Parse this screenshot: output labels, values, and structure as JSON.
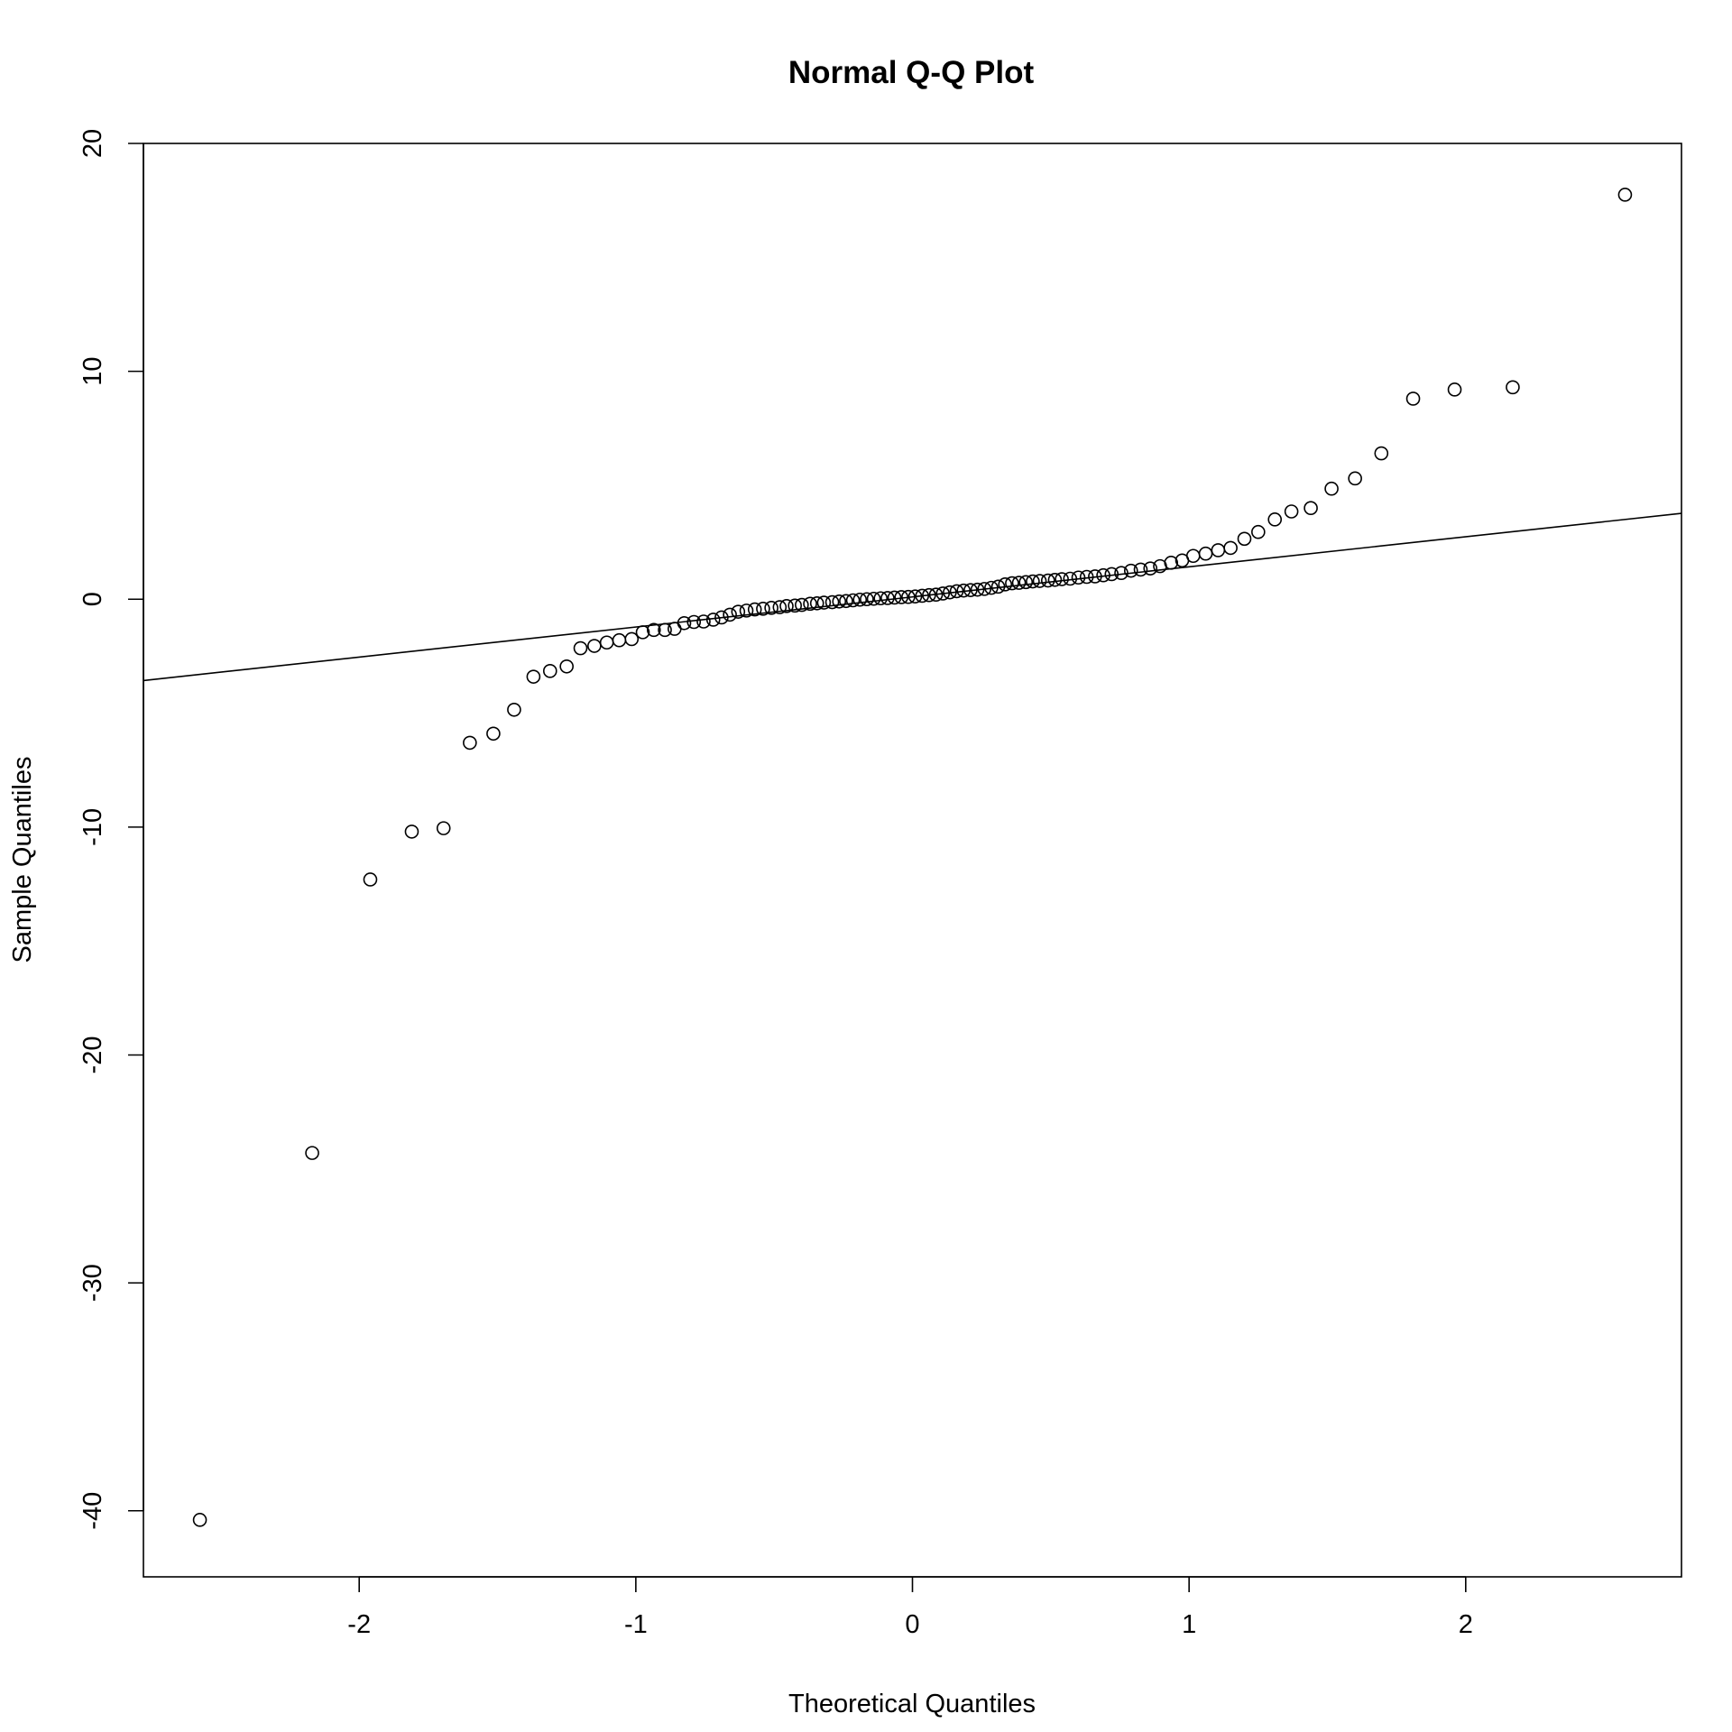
{
  "chart_data": {
    "type": "scatter",
    "title": "Normal Q-Q Plot",
    "xlabel": "Theoretical Quantiles",
    "ylabel": "Sample Quantiles",
    "xlim": [
      -2.78,
      2.78
    ],
    "ylim": [
      -42.9,
      20.0
    ],
    "xticks": [
      -2,
      -1,
      0,
      1,
      2
    ],
    "xtick_labels": [
      "-2",
      "-1",
      "0",
      "1",
      "2"
    ],
    "yticks": [
      -40,
      -30,
      -20,
      -10,
      0,
      10,
      20
    ],
    "ytick_labels": [
      "-40",
      "-30",
      "-20",
      "-10",
      "0",
      "10",
      "20"
    ],
    "grid": false,
    "legend": false,
    "reference_line": {
      "slope": 1.32,
      "intercept": 0.1
    },
    "series": [
      {
        "marker": "open-circle",
        "color": "#000000",
        "points": [
          [
            -2.576,
            -40.4
          ],
          [
            -2.17,
            -24.3
          ],
          [
            -1.96,
            -12.3
          ],
          [
            -1.81,
            -10.2
          ],
          [
            -1.695,
            -10.05
          ],
          [
            -1.6,
            -6.3
          ],
          [
            -1.515,
            -5.9
          ],
          [
            -1.44,
            -4.85
          ],
          [
            -1.37,
            -3.4
          ],
          [
            -1.31,
            -3.15
          ],
          [
            -1.25,
            -2.95
          ],
          [
            -1.2,
            -2.15
          ],
          [
            -1.15,
            -2.05
          ],
          [
            -1.105,
            -1.9
          ],
          [
            -1.06,
            -1.8
          ],
          [
            -1.015,
            -1.75
          ],
          [
            -0.975,
            -1.45
          ],
          [
            -0.935,
            -1.35
          ],
          [
            -0.895,
            -1.35
          ],
          [
            -0.86,
            -1.3
          ],
          [
            -0.825,
            -1.05
          ],
          [
            -0.79,
            -1.0
          ],
          [
            -0.755,
            -0.98
          ],
          [
            -0.72,
            -0.9
          ],
          [
            -0.69,
            -0.8
          ],
          [
            -0.66,
            -0.68
          ],
          [
            -0.63,
            -0.55
          ],
          [
            -0.6,
            -0.5
          ],
          [
            -0.57,
            -0.45
          ],
          [
            -0.54,
            -0.42
          ],
          [
            -0.51,
            -0.38
          ],
          [
            -0.48,
            -0.35
          ],
          [
            -0.455,
            -0.3
          ],
          [
            -0.425,
            -0.28
          ],
          [
            -0.4,
            -0.25
          ],
          [
            -0.37,
            -0.2
          ],
          [
            -0.345,
            -0.18
          ],
          [
            -0.32,
            -0.15
          ],
          [
            -0.29,
            -0.13
          ],
          [
            -0.265,
            -0.1
          ],
          [
            -0.24,
            -0.08
          ],
          [
            -0.215,
            -0.05
          ],
          [
            -0.19,
            -0.02
          ],
          [
            -0.165,
            0.0
          ],
          [
            -0.14,
            0.02
          ],
          [
            -0.115,
            0.04
          ],
          [
            -0.09,
            0.05
          ],
          [
            -0.065,
            0.07
          ],
          [
            -0.04,
            0.09
          ],
          [
            -0.015,
            0.1
          ],
          [
            0.01,
            0.12
          ],
          [
            0.035,
            0.15
          ],
          [
            0.06,
            0.18
          ],
          [
            0.085,
            0.2
          ],
          [
            0.11,
            0.25
          ],
          [
            0.135,
            0.3
          ],
          [
            0.16,
            0.35
          ],
          [
            0.185,
            0.38
          ],
          [
            0.21,
            0.4
          ],
          [
            0.235,
            0.42
          ],
          [
            0.26,
            0.45
          ],
          [
            0.285,
            0.5
          ],
          [
            0.31,
            0.55
          ],
          [
            0.335,
            0.65
          ],
          [
            0.36,
            0.7
          ],
          [
            0.385,
            0.72
          ],
          [
            0.41,
            0.75
          ],
          [
            0.435,
            0.78
          ],
          [
            0.46,
            0.8
          ],
          [
            0.49,
            0.82
          ],
          [
            0.515,
            0.85
          ],
          [
            0.54,
            0.88
          ],
          [
            0.57,
            0.9
          ],
          [
            0.6,
            0.95
          ],
          [
            0.63,
            0.98
          ],
          [
            0.66,
            1.0
          ],
          [
            0.69,
            1.05
          ],
          [
            0.72,
            1.1
          ],
          [
            0.755,
            1.15
          ],
          [
            0.79,
            1.25
          ],
          [
            0.825,
            1.3
          ],
          [
            0.86,
            1.35
          ],
          [
            0.895,
            1.45
          ],
          [
            0.935,
            1.6
          ],
          [
            0.975,
            1.7
          ],
          [
            1.015,
            1.9
          ],
          [
            1.06,
            2.0
          ],
          [
            1.105,
            2.15
          ],
          [
            1.15,
            2.25
          ],
          [
            1.2,
            2.65
          ],
          [
            1.25,
            2.95
          ],
          [
            1.31,
            3.5
          ],
          [
            1.37,
            3.85
          ],
          [
            1.44,
            4.0
          ],
          [
            1.515,
            4.85
          ],
          [
            1.6,
            5.3
          ],
          [
            1.695,
            6.4
          ],
          [
            1.81,
            8.8
          ],
          [
            1.96,
            9.2
          ],
          [
            2.17,
            9.3
          ],
          [
            2.576,
            17.75
          ]
        ]
      }
    ]
  }
}
